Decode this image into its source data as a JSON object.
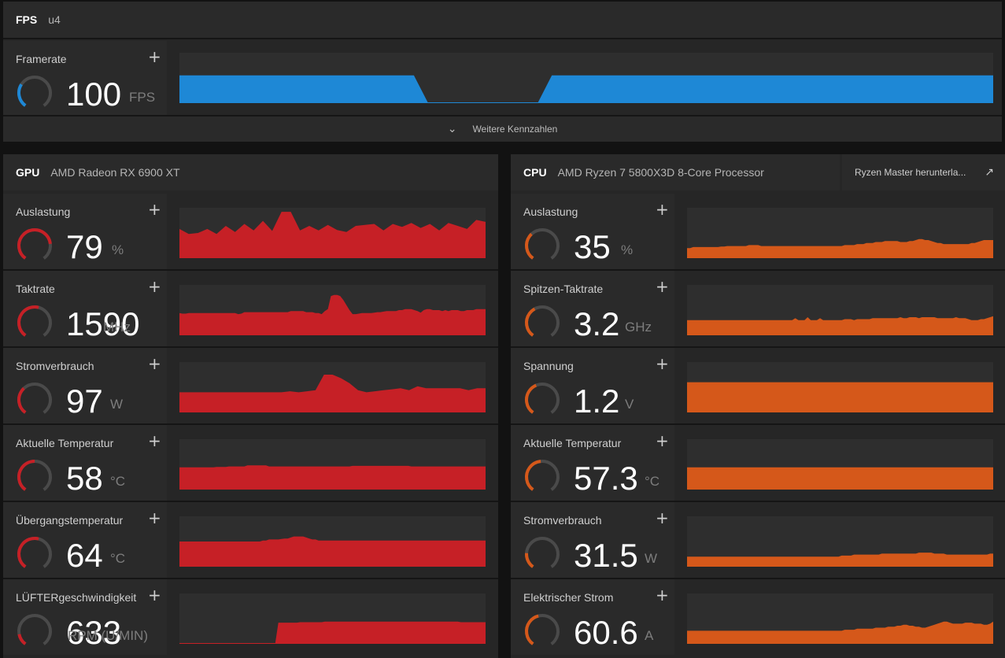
{
  "fps": {
    "tag": "FPS",
    "sub": "u4",
    "metric": {
      "label": "Framerate",
      "value": "100",
      "unit": "FPS",
      "gauge": 0.3
    },
    "more_label": "Weitere Kennzahlen",
    "series": [
      55,
      55,
      55,
      55,
      55,
      55,
      55,
      55,
      55,
      55,
      55,
      55,
      55,
      55,
      55,
      55,
      55,
      55,
      0,
      0,
      0,
      0,
      0,
      0,
      0,
      0,
      0,
      55,
      55,
      55,
      55,
      55,
      55,
      55,
      55,
      55,
      55,
      55,
      55,
      55,
      55,
      55,
      55,
      55,
      55,
      55,
      55,
      55,
      55,
      55,
      55,
      55,
      55,
      55,
      55,
      55,
      55,
      55,
      55,
      55
    ]
  },
  "gpu": {
    "tag": "GPU",
    "sub": "AMD Radeon RX 6900 XT",
    "color": "#c62026",
    "metrics": [
      {
        "label": "Auslastung",
        "value": "79",
        "unit": "%",
        "gauge": 0.79,
        "series": [
          58,
          48,
          50,
          58,
          48,
          64,
          52,
          68,
          55,
          74,
          54,
          92,
          92,
          55,
          64,
          55,
          66,
          56,
          52,
          64,
          66,
          68,
          55,
          68,
          62,
          70,
          60,
          68,
          55,
          70,
          64,
          58,
          76,
          72
        ]
      },
      {
        "label": "Taktrate",
        "value": "1590",
        "unit": "MHz",
        "gauge": 0.55,
        "series": [
          44,
          43,
          43,
          44,
          44,
          44,
          44,
          44,
          44,
          44,
          44,
          44,
          44,
          44,
          44,
          44,
          44,
          44,
          44,
          42,
          43,
          46,
          46,
          46,
          46,
          46,
          46,
          46,
          46,
          46,
          46,
          46,
          46,
          46,
          46,
          46,
          48,
          48,
          48,
          48,
          48,
          46,
          46,
          46,
          44,
          44,
          42,
          48,
          52,
          78,
          80,
          80,
          78,
          70,
          60,
          50,
          42,
          42,
          43,
          44,
          44,
          44,
          44,
          45,
          46,
          46,
          47,
          48,
          48,
          48,
          48,
          50,
          50,
          52,
          52,
          52,
          50,
          48,
          45,
          50,
          52,
          52,
          50,
          50,
          50,
          48,
          50,
          48,
          50,
          50,
          50,
          48,
          48,
          50,
          50,
          50,
          52,
          52,
          52,
          52
        ]
      },
      {
        "label": "Stromverbrauch",
        "value": "97",
        "unit": "W",
        "gauge": 0.35,
        "series": [
          40,
          40,
          40,
          40,
          40,
          40,
          40,
          40,
          40,
          40,
          40,
          40,
          40,
          42,
          40,
          42,
          44,
          75,
          75,
          68,
          58,
          44,
          40,
          42,
          44,
          46,
          48,
          44,
          52,
          48,
          48,
          48,
          48,
          48,
          44,
          48,
          48
        ]
      },
      {
        "label": "Aktuelle Temperatur",
        "value": "58",
        "unit": "°C",
        "gauge": 0.5,
        "series": [
          44,
          44,
          44,
          44,
          44,
          44,
          44,
          44,
          44,
          44,
          44,
          44,
          45,
          45,
          45,
          45,
          46,
          46,
          46,
          46,
          46,
          46,
          48,
          48,
          48,
          48,
          48,
          48,
          48,
          46,
          46,
          46,
          46,
          46,
          46,
          46,
          46,
          46,
          46,
          46,
          46,
          46,
          46,
          46,
          46,
          46,
          46,
          46,
          46,
          46,
          46,
          46,
          46,
          46,
          46,
          46,
          47,
          47,
          47,
          47,
          47,
          47,
          47,
          47,
          47,
          47,
          47,
          47,
          47,
          47,
          47,
          47,
          47,
          47,
          47,
          46,
          46,
          46,
          46,
          46,
          46,
          46,
          46,
          46,
          46,
          46,
          46,
          46,
          46,
          46,
          46,
          46,
          46,
          46,
          46,
          46,
          46,
          46,
          46,
          46
        ]
      },
      {
        "label": "Übergangstemperatur",
        "value": "64",
        "unit": "°C",
        "gauge": 0.55,
        "series": [
          50,
          50,
          50,
          50,
          50,
          50,
          50,
          50,
          50,
          50,
          50,
          50,
          50,
          50,
          50,
          50,
          50,
          50,
          50,
          50,
          50,
          50,
          50,
          50,
          50,
          50,
          50,
          52,
          52,
          54,
          54,
          54,
          54,
          55,
          56,
          56,
          58,
          60,
          60,
          60,
          60,
          58,
          56,
          54,
          54,
          52,
          52,
          52,
          52,
          52,
          52,
          52,
          52,
          52,
          52,
          52,
          52,
          52,
          52,
          52,
          52,
          52,
          52,
          52,
          52,
          52,
          52,
          52,
          52,
          52,
          52,
          52,
          52,
          52,
          52,
          52,
          52,
          52,
          52,
          52,
          52,
          52,
          52,
          52,
          52,
          52,
          52,
          52,
          52,
          52,
          52,
          52,
          52,
          52,
          52,
          52,
          52,
          52,
          52,
          52
        ]
      },
      {
        "label": "LÜFTERgeschwindigkeit",
        "value": "633",
        "unit": "RPM (U/MIN)",
        "gauge": 0.15,
        "series": [
          0,
          0,
          0,
          0,
          0,
          0,
          0,
          0,
          0,
          0,
          0,
          0,
          0,
          0,
          0,
          0,
          0,
          0,
          0,
          0,
          0,
          0,
          0,
          0,
          0,
          0,
          0,
          0,
          0,
          0,
          0,
          0,
          42,
          42,
          42,
          42,
          42,
          42,
          42,
          43,
          43,
          43,
          43,
          43,
          43,
          43,
          43,
          44,
          44,
          44,
          44,
          44,
          44,
          44,
          44,
          44,
          44,
          44,
          44,
          44,
          44,
          44,
          44,
          44,
          44,
          44,
          44,
          44,
          44,
          44,
          44,
          44,
          44,
          44,
          44,
          44,
          44,
          44,
          44,
          44,
          44,
          44,
          44,
          44,
          44,
          44,
          44,
          44,
          44,
          44,
          44,
          43,
          43,
          43,
          43,
          43,
          43,
          43,
          43,
          43
        ]
      }
    ]
  },
  "cpu": {
    "tag": "CPU",
    "sub": "AMD Ryzen 7 5800X3D 8-Core Processor",
    "link_label": "Ryzen Master herunterla...",
    "color": "#d5581a",
    "metrics": [
      {
        "label": "Auslastung",
        "value": "35",
        "unit": "%",
        "gauge": 0.35,
        "series": [
          20,
          20,
          22,
          22,
          22,
          22,
          22,
          22,
          22,
          22,
          22,
          23,
          23,
          24,
          24,
          24,
          24,
          24,
          24,
          24,
          26,
          26,
          26,
          26,
          24,
          24,
          24,
          24,
          24,
          24,
          24,
          24,
          24,
          24,
          24,
          24,
          24,
          24,
          24,
          24,
          24,
          24,
          24,
          24,
          24,
          24,
          24,
          24,
          24,
          24,
          24,
          26,
          26,
          26,
          26,
          28,
          28,
          28,
          30,
          30,
          30,
          32,
          32,
          32,
          34,
          34,
          34,
          34,
          34,
          32,
          32,
          32,
          34,
          34,
          36,
          38,
          38,
          36,
          36,
          34,
          32,
          30,
          30,
          28,
          28,
          28,
          28,
          28,
          28,
          28,
          28,
          28,
          30,
          30,
          32,
          34,
          36,
          36,
          36,
          36
        ]
      },
      {
        "label": "Spitzen-Taktrate",
        "value": "3.2",
        "unit": "GHz",
        "gauge": 0.4,
        "series": [
          30,
          30,
          30,
          30,
          30,
          30,
          30,
          30,
          30,
          30,
          30,
          30,
          30,
          30,
          30,
          30,
          30,
          30,
          30,
          30,
          30,
          30,
          30,
          30,
          30,
          30,
          30,
          30,
          30,
          30,
          30,
          30,
          30,
          30,
          30,
          34,
          30,
          30,
          30,
          36,
          30,
          30,
          30,
          34,
          30,
          30,
          30,
          30,
          30,
          30,
          30,
          32,
          32,
          32,
          30,
          32,
          32,
          32,
          32,
          32,
          34,
          34,
          34,
          34,
          34,
          34,
          34,
          34,
          34,
          36,
          34,
          34,
          36,
          36,
          36,
          34,
          36,
          36,
          36,
          36,
          36,
          34,
          34,
          34,
          34,
          34,
          34,
          36,
          34,
          34,
          34,
          32,
          30,
          30,
          30,
          32,
          32,
          34,
          36,
          38
        ]
      },
      {
        "label": "Spannung",
        "value": "1.2",
        "unit": "V",
        "gauge": 0.42,
        "series": [
          60,
          60,
          60,
          60,
          60,
          60,
          60,
          60,
          60,
          60,
          60,
          60,
          60,
          60,
          60,
          60,
          60,
          60,
          60,
          60,
          60,
          60,
          60,
          60,
          60,
          60,
          60,
          60,
          60,
          60,
          60,
          60,
          60,
          60,
          60,
          60,
          60,
          60,
          60,
          60,
          60,
          60,
          60,
          60,
          60,
          60,
          60,
          60,
          60,
          60,
          60,
          60,
          60,
          60,
          60,
          60,
          60,
          60,
          60,
          60,
          60,
          60,
          60,
          60,
          60,
          60,
          60,
          60,
          60,
          60,
          60,
          60,
          60,
          60,
          60,
          60,
          60,
          60,
          60,
          60,
          60,
          60,
          60,
          60,
          60,
          60,
          60,
          60,
          60,
          60,
          60,
          60,
          60,
          60,
          60,
          60,
          60,
          60,
          60,
          60
        ]
      },
      {
        "label": "Aktuelle Temperatur",
        "value": "57.3",
        "unit": "°C",
        "gauge": 0.48,
        "series": [
          44,
          44,
          44,
          44,
          44,
          44,
          44,
          44,
          44,
          44,
          44,
          44,
          44,
          44,
          44,
          44,
          44,
          44,
          44,
          44,
          44,
          44,
          44,
          44,
          44,
          44,
          44,
          44,
          44,
          44,
          44,
          44,
          44,
          44,
          44,
          44,
          44,
          44,
          44,
          44,
          44,
          44,
          44,
          44,
          44,
          44,
          44,
          44,
          44,
          44,
          44,
          44,
          44,
          44,
          44,
          44,
          44,
          44,
          44,
          44,
          44,
          44,
          44,
          44,
          44,
          44,
          44,
          44,
          44,
          44,
          44,
          44,
          44,
          44,
          44,
          44,
          44,
          44,
          44,
          44,
          44,
          44,
          44,
          44,
          44,
          44,
          44,
          44,
          44,
          44,
          44,
          44,
          44,
          44,
          44,
          44,
          44,
          44,
          44,
          44
        ]
      },
      {
        "label": "Stromverbrauch",
        "value": "31.5",
        "unit": "W",
        "gauge": 0.2,
        "series": [
          20,
          20,
          20,
          20,
          20,
          20,
          20,
          20,
          20,
          20,
          20,
          20,
          20,
          20,
          20,
          20,
          20,
          20,
          20,
          20,
          20,
          20,
          20,
          20,
          20,
          20,
          20,
          20,
          20,
          20,
          20,
          20,
          20,
          20,
          20,
          20,
          20,
          20,
          20,
          20,
          20,
          20,
          20,
          20,
          20,
          20,
          20,
          20,
          20,
          20,
          22,
          22,
          22,
          22,
          24,
          24,
          24,
          24,
          24,
          24,
          24,
          24,
          24,
          26,
          26,
          26,
          26,
          26,
          26,
          26,
          26,
          26,
          26,
          26,
          26,
          28,
          28,
          28,
          28,
          28,
          26,
          26,
          26,
          26,
          24,
          24,
          24,
          24,
          24,
          24,
          24,
          24,
          24,
          24,
          24,
          24,
          24,
          24,
          26,
          26
        ]
      },
      {
        "label": "Elektrischer Strom",
        "value": "60.6",
        "unit": "A",
        "gauge": 0.45,
        "series": [
          26,
          26,
          26,
          26,
          26,
          26,
          26,
          26,
          26,
          26,
          26,
          26,
          26,
          26,
          26,
          26,
          26,
          26,
          26,
          26,
          26,
          26,
          26,
          26,
          26,
          26,
          26,
          26,
          26,
          26,
          26,
          26,
          26,
          26,
          26,
          26,
          26,
          26,
          26,
          26,
          26,
          26,
          26,
          26,
          26,
          26,
          26,
          26,
          26,
          26,
          26,
          28,
          28,
          28,
          28,
          30,
          30,
          30,
          30,
          30,
          30,
          32,
          32,
          32,
          32,
          34,
          34,
          34,
          36,
          36,
          38,
          38,
          36,
          36,
          34,
          34,
          32,
          32,
          34,
          36,
          38,
          40,
          42,
          44,
          44,
          42,
          40,
          40,
          40,
          40,
          42,
          42,
          42,
          40,
          40,
          40,
          38,
          38,
          40,
          44
        ]
      }
    ]
  },
  "fps_color": "#1e88d6"
}
